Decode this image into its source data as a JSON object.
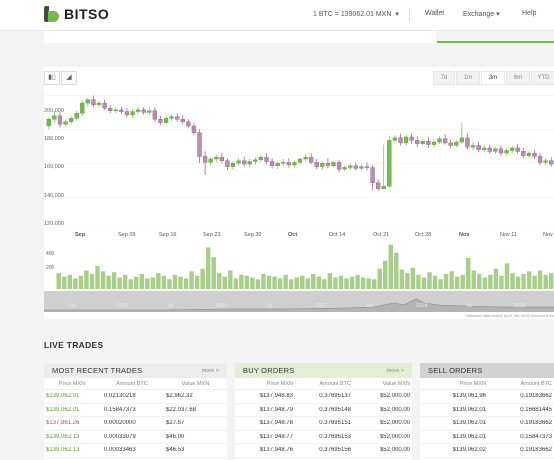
{
  "header": {
    "brand": "BITSO",
    "rate": "1 BTC = 139062.01 MXN",
    "nav": [
      "Wallet",
      "Exchange",
      "Help"
    ]
  },
  "chart": {
    "ranges": [
      "7d",
      "1m",
      "3m",
      "6m",
      "YTD"
    ],
    "active_range": "3m",
    "y_ticks": [
      "200,000",
      "180,000",
      "160,000",
      "140,000",
      "120,000"
    ],
    "x_labels": [
      "Sep",
      "Sep 09",
      "Sep 16",
      "Sep 23",
      "Sep 30",
      "Oct",
      "Oct 14",
      "Oct 21",
      "Oct 28",
      "Nov",
      "Nov 11",
      "Nov"
    ],
    "volume_ticks": [
      "400",
      "200"
    ],
    "history_labels": [
      "Jul",
      "2015",
      "Jul",
      "2016",
      "Jul",
      "2017",
      "Jul",
      "2018",
      "Jul",
      "2019"
    ],
    "note": "Historical data before April, 4th 2016 sourced from"
  },
  "chart_data": {
    "type": "candlestick",
    "ylim": [
      120000,
      205000
    ],
    "candles": [
      {
        "o": 182000,
        "h": 187000,
        "c": 186000,
        "l": 180000
      },
      {
        "o": 186000,
        "h": 191000,
        "c": 188000,
        "l": 184000
      },
      {
        "o": 188000,
        "h": 190000,
        "c": 183000,
        "l": 181000
      },
      {
        "o": 183000,
        "h": 186000,
        "c": 184500,
        "l": 182000
      },
      {
        "o": 184500,
        "h": 188000,
        "c": 186500,
        "l": 182500
      },
      {
        "o": 186500,
        "h": 191000,
        "c": 189500,
        "l": 185000
      },
      {
        "o": 189500,
        "h": 197000,
        "c": 195500,
        "l": 188000
      },
      {
        "o": 195500,
        "h": 198500,
        "c": 197500,
        "l": 193500
      },
      {
        "o": 197500,
        "h": 200000,
        "c": 194500,
        "l": 193000
      },
      {
        "o": 194500,
        "h": 197000,
        "c": 195500,
        "l": 193000
      },
      {
        "o": 195500,
        "h": 197500,
        "c": 192500,
        "l": 191500
      },
      {
        "o": 192500,
        "h": 194500,
        "c": 191000,
        "l": 189500
      },
      {
        "o": 191000,
        "h": 193000,
        "c": 191500,
        "l": 189500
      },
      {
        "o": 191500,
        "h": 193500,
        "c": 190500,
        "l": 189000
      },
      {
        "o": 190500,
        "h": 192500,
        "c": 188500,
        "l": 187000
      },
      {
        "o": 188500,
        "h": 192000,
        "c": 190500,
        "l": 186500
      },
      {
        "o": 190500,
        "h": 193500,
        "c": 191500,
        "l": 189000
      },
      {
        "o": 191500,
        "h": 193000,
        "c": 190000,
        "l": 188500
      },
      {
        "o": 190000,
        "h": 193000,
        "c": 191000,
        "l": 188000
      },
      {
        "o": 191000,
        "h": 193000,
        "c": 186000,
        "l": 184500
      },
      {
        "o": 186000,
        "h": 188000,
        "c": 184000,
        "l": 182500
      },
      {
        "o": 184000,
        "h": 187500,
        "c": 186500,
        "l": 183000
      },
      {
        "o": 186500,
        "h": 189000,
        "c": 187500,
        "l": 185000
      },
      {
        "o": 187500,
        "h": 189500,
        "c": 186000,
        "l": 184500
      },
      {
        "o": 186000,
        "h": 188500,
        "c": 184500,
        "l": 183000
      },
      {
        "o": 184500,
        "h": 186000,
        "c": 182000,
        "l": 181000
      },
      {
        "o": 182000,
        "h": 184000,
        "c": 178000,
        "l": 176500
      },
      {
        "o": 178000,
        "h": 180000,
        "c": 164000,
        "l": 160000
      },
      {
        "o": 164000,
        "h": 167000,
        "c": 160500,
        "l": 153000
      },
      {
        "o": 160500,
        "h": 163500,
        "c": 162500,
        "l": 158500
      },
      {
        "o": 162500,
        "h": 165000,
        "c": 163500,
        "l": 160500
      },
      {
        "o": 163500,
        "h": 166000,
        "c": 161500,
        "l": 160000
      },
      {
        "o": 161500,
        "h": 163000,
        "c": 158000,
        "l": 156000
      },
      {
        "o": 158000,
        "h": 161500,
        "c": 160000,
        "l": 156000
      },
      {
        "o": 160000,
        "h": 163000,
        "c": 161500,
        "l": 158500
      },
      {
        "o": 161500,
        "h": 164000,
        "c": 159500,
        "l": 158000
      },
      {
        "o": 159500,
        "h": 162500,
        "c": 161000,
        "l": 157500
      },
      {
        "o": 161000,
        "h": 163500,
        "c": 162000,
        "l": 159000
      },
      {
        "o": 162000,
        "h": 165000,
        "c": 163500,
        "l": 160500
      },
      {
        "o": 163500,
        "h": 166000,
        "c": 161000,
        "l": 159500
      },
      {
        "o": 161000,
        "h": 163000,
        "c": 158500,
        "l": 157000
      },
      {
        "o": 158500,
        "h": 161000,
        "c": 160000,
        "l": 156500
      },
      {
        "o": 160000,
        "h": 162500,
        "c": 160500,
        "l": 158000
      },
      {
        "o": 160500,
        "h": 163000,
        "c": 159000,
        "l": 157500
      },
      {
        "o": 159000,
        "h": 161500,
        "c": 160500,
        "l": 157000
      },
      {
        "o": 160500,
        "h": 163000,
        "c": 162500,
        "l": 159000
      },
      {
        "o": 162500,
        "h": 165500,
        "c": 163500,
        "l": 161000
      },
      {
        "o": 163500,
        "h": 166000,
        "c": 160500,
        "l": 159500
      },
      {
        "o": 160500,
        "h": 162500,
        "c": 158000,
        "l": 156500
      },
      {
        "o": 158000,
        "h": 161000,
        "c": 160000,
        "l": 156000
      },
      {
        "o": 160000,
        "h": 163000,
        "c": 158500,
        "l": 157000
      },
      {
        "o": 158500,
        "h": 161000,
        "c": 160500,
        "l": 157500
      },
      {
        "o": 160500,
        "h": 162000,
        "c": 156500,
        "l": 154500
      },
      {
        "o": 156500,
        "h": 158500,
        "c": 157500,
        "l": 155500
      },
      {
        "o": 157500,
        "h": 160000,
        "c": 158500,
        "l": 156000
      },
      {
        "o": 158500,
        "h": 160500,
        "c": 157000,
        "l": 155500
      },
      {
        "o": 157000,
        "h": 159500,
        "c": 158000,
        "l": 155500
      },
      {
        "o": 158000,
        "h": 160500,
        "c": 157500,
        "l": 156000
      },
      {
        "o": 157500,
        "h": 159000,
        "c": 148500,
        "l": 144000
      },
      {
        "o": 148500,
        "h": 150500,
        "c": 145000,
        "l": 143500
      },
      {
        "o": 145000,
        "h": 171000,
        "c": 146500,
        "l": 144500
      },
      {
        "o": 146500,
        "h": 176000,
        "c": 173500,
        "l": 145500
      },
      {
        "o": 173500,
        "h": 176500,
        "c": 175000,
        "l": 171500
      },
      {
        "o": 175000,
        "h": 177500,
        "c": 172000,
        "l": 170500
      },
      {
        "o": 172000,
        "h": 176500,
        "c": 175500,
        "l": 170500
      },
      {
        "o": 175500,
        "h": 177500,
        "c": 173500,
        "l": 171500
      },
      {
        "o": 173500,
        "h": 176000,
        "c": 171500,
        "l": 169500
      },
      {
        "o": 171500,
        "h": 174500,
        "c": 173000,
        "l": 170500
      },
      {
        "o": 173000,
        "h": 175500,
        "c": 171000,
        "l": 169000
      },
      {
        "o": 171000,
        "h": 174000,
        "c": 172500,
        "l": 169500
      },
      {
        "o": 172500,
        "h": 176000,
        "c": 174500,
        "l": 171500
      },
      {
        "o": 174500,
        "h": 177000,
        "c": 172000,
        "l": 171000
      },
      {
        "o": 172000,
        "h": 174000,
        "c": 170500,
        "l": 169000
      },
      {
        "o": 170500,
        "h": 173500,
        "c": 172500,
        "l": 169500
      },
      {
        "o": 172500,
        "h": 184000,
        "c": 175000,
        "l": 171500
      },
      {
        "o": 175000,
        "h": 177500,
        "c": 169500,
        "l": 168000
      },
      {
        "o": 169500,
        "h": 172500,
        "c": 170500,
        "l": 167500
      },
      {
        "o": 170500,
        "h": 172500,
        "c": 168000,
        "l": 166500
      },
      {
        "o": 168000,
        "h": 170500,
        "c": 169000,
        "l": 166500
      },
      {
        "o": 169000,
        "h": 171000,
        "c": 167000,
        "l": 165500
      },
      {
        "o": 167000,
        "h": 169500,
        "c": 168500,
        "l": 165500
      },
      {
        "o": 168500,
        "h": 170500,
        "c": 166000,
        "l": 164500
      },
      {
        "o": 166000,
        "h": 168500,
        "c": 167500,
        "l": 164500
      },
      {
        "o": 167500,
        "h": 170000,
        "c": 169000,
        "l": 166000
      },
      {
        "o": 169000,
        "h": 171500,
        "c": 167000,
        "l": 165500
      },
      {
        "o": 167000,
        "h": 169000,
        "c": 164500,
        "l": 163000
      },
      {
        "o": 164500,
        "h": 167000,
        "c": 166000,
        "l": 163500
      },
      {
        "o": 166000,
        "h": 168000,
        "c": 164000,
        "l": 162500
      },
      {
        "o": 164000,
        "h": 166000,
        "c": 160500,
        "l": 159000
      },
      {
        "o": 160500,
        "h": 163000,
        "c": 161500,
        "l": 159000
      },
      {
        "o": 161500,
        "h": 163500,
        "c": 159500,
        "l": 158000
      }
    ],
    "volume_ylim": [
      0,
      520
    ],
    "volumes": [
      180,
      140,
      160,
      120,
      150,
      210,
      170,
      260,
      200,
      150,
      190,
      130,
      160,
      110,
      140,
      170,
      120,
      130,
      180,
      150,
      110,
      160,
      140,
      120,
      200,
      150,
      230,
      470,
      360,
      180,
      140,
      210,
      120,
      160,
      150,
      130,
      110,
      170,
      150,
      140,
      120,
      160,
      110,
      130,
      150,
      120,
      170,
      140,
      110,
      180,
      130,
      150,
      120,
      140,
      160,
      130,
      120,
      110,
      230,
      320,
      500,
      410,
      220,
      180,
      240,
      160,
      130,
      190,
      150,
      110,
      170,
      200,
      140,
      160,
      350,
      210,
      170,
      130,
      160,
      230,
      150,
      290,
      180,
      140,
      170,
      200,
      150,
      210,
      160,
      180
    ]
  },
  "live_trades": {
    "title": "LIVE TRADES",
    "recent": {
      "title": "MOST RECENT TRADES",
      "more": "more >",
      "columns": [
        "Price MXN",
        "Amount BTC",
        "Value MXN"
      ],
      "rows": [
        [
          "$139,062.01",
          "0.02130218",
          "$2,962.32"
        ],
        [
          "$139,062.01",
          "0.15847373",
          "$22,037.68"
        ],
        [
          "$137,861.26",
          "0.00020000",
          "$27.57"
        ],
        [
          "$139,062.13",
          "0.00033079",
          "$46.00"
        ],
        [
          "$139,062.13",
          "0.00033463",
          "$46.53"
        ]
      ]
    },
    "buy": {
      "title": "BUY ORDERS",
      "more": "more >",
      "columns": [
        "Price MXN",
        "Amount BTC",
        "Value MXN"
      ],
      "rows": [
        [
          "$137,948.83",
          "0.37695137",
          "$52,000.00"
        ],
        [
          "$137,948.79",
          "0.37695148",
          "$52,000.00"
        ],
        [
          "$137,948.78",
          "0.37695151",
          "$52,000.00"
        ],
        [
          "$137,948.77",
          "0.37695153",
          "$52,000.00"
        ],
        [
          "$137,948.76",
          "0.37695156",
          "$52,000.00"
        ]
      ]
    },
    "sell": {
      "title": "SELL ORDERS",
      "columns": [
        "Price MXN",
        "Amount BTC"
      ],
      "rows": [
        [
          "$139,061.96",
          "0.19183662"
        ],
        [
          "$139,062.01",
          "0.16681445"
        ],
        [
          "$139,062.01",
          "0.19183662"
        ],
        [
          "$139,062.01",
          "0.15847373"
        ],
        [
          "$139,062.02",
          "0.19183662"
        ]
      ]
    }
  },
  "colors": {
    "accent": "#76b852",
    "candle_up": "#76b852",
    "candle_down": "#c08bb0",
    "volume": "#a8cf8a",
    "buy_header": "#e2efd5",
    "sell_header": "#d2d2d2",
    "recent_header": "#ececec"
  }
}
